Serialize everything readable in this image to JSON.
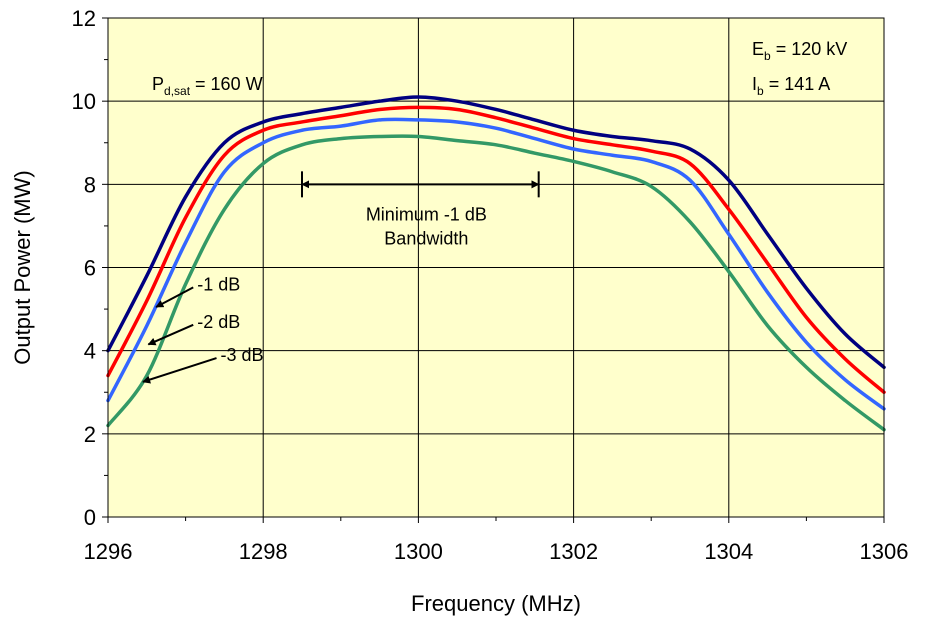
{
  "chart_data": {
    "type": "line",
    "xlabel": "Frequency (MHz)",
    "ylabel": "Output Power (MW)",
    "xlim": [
      1296,
      1306
    ],
    "ylim": [
      0,
      12
    ],
    "x_ticks": [
      "1296",
      "1298",
      "1300",
      "1302",
      "1304",
      "1306"
    ],
    "y_ticks": [
      "0",
      "2",
      "4",
      "6",
      "8",
      "10",
      "12"
    ],
    "grid": true,
    "background_color": "#FFFFCC",
    "series": [
      {
        "name": "",
        "color": "#000080",
        "x": [
          1296,
          1296.5,
          1297,
          1297.5,
          1298,
          1298.5,
          1299,
          1299.5,
          1300,
          1300.5,
          1301,
          1301.5,
          1302,
          1302.5,
          1303,
          1303.5,
          1304,
          1304.5,
          1305,
          1305.5,
          1306
        ],
        "y": [
          4.0,
          5.8,
          7.7,
          9.0,
          9.5,
          9.7,
          9.85,
          10.0,
          10.1,
          10.0,
          9.8,
          9.55,
          9.3,
          9.15,
          9.05,
          8.85,
          8.1,
          6.8,
          5.5,
          4.4,
          3.6
        ]
      },
      {
        "name": "-1 dB",
        "color": "#FF0000",
        "x": [
          1296,
          1296.5,
          1297,
          1297.5,
          1298,
          1298.5,
          1299,
          1299.5,
          1300,
          1300.5,
          1301,
          1301.5,
          1302,
          1302.5,
          1303,
          1303.5,
          1304,
          1304.5,
          1305,
          1305.5,
          1306
        ],
        "y": [
          3.4,
          5.2,
          7.2,
          8.7,
          9.3,
          9.5,
          9.65,
          9.8,
          9.85,
          9.8,
          9.6,
          9.35,
          9.1,
          8.95,
          8.8,
          8.5,
          7.4,
          6.1,
          4.8,
          3.8,
          3.0
        ]
      },
      {
        "name": "-2 dB",
        "color": "#3366FF",
        "x": [
          1296,
          1296.5,
          1297,
          1297.5,
          1298,
          1298.5,
          1299,
          1299.5,
          1300,
          1300.5,
          1301,
          1301.5,
          1302,
          1302.5,
          1303,
          1303.5,
          1304,
          1304.5,
          1305,
          1305.5,
          1306
        ],
        "y": [
          2.8,
          4.6,
          6.6,
          8.3,
          9.0,
          9.3,
          9.4,
          9.55,
          9.55,
          9.5,
          9.35,
          9.1,
          8.85,
          8.7,
          8.55,
          8.1,
          6.8,
          5.4,
          4.2,
          3.3,
          2.6
        ]
      },
      {
        "name": "-3 dB",
        "color": "#339966",
        "x": [
          1296,
          1296.5,
          1297,
          1297.5,
          1298,
          1298.5,
          1299,
          1299.5,
          1300,
          1300.5,
          1301,
          1301.5,
          1302,
          1302.5,
          1303,
          1303.5,
          1304,
          1304.5,
          1305,
          1305.5,
          1306
        ],
        "y": [
          2.2,
          3.4,
          5.6,
          7.4,
          8.5,
          8.95,
          9.1,
          9.15,
          9.15,
          9.05,
          8.95,
          8.75,
          8.55,
          8.3,
          7.95,
          7.1,
          5.9,
          4.6,
          3.6,
          2.8,
          2.1
        ]
      }
    ],
    "annotations": {
      "pd_sat": {
        "prefix": "P",
        "sub": "d,sat",
        "suffix": " = 160 W"
      },
      "eb": {
        "prefix": "E",
        "sub": "b",
        "suffix": " = 120 kV"
      },
      "ib": {
        "prefix": "I",
        "sub": "b",
        "suffix": " = 141 A"
      },
      "bandwidth": {
        "line1": "Minimum -1 dB",
        "line2": "Bandwidth",
        "x_start": 1298.5,
        "x_end": 1301.55,
        "y": 8.0
      },
      "curve_labels": [
        {
          "text": "-1 dB",
          "label_x": 1297.15,
          "label_y": 5.45,
          "arrow_x": 1296.62,
          "arrow_y": 5.05
        },
        {
          "text": "-2 dB",
          "label_x": 1297.15,
          "label_y": 4.55,
          "arrow_x": 1296.52,
          "arrow_y": 4.15
        },
        {
          "text": "-3 dB",
          "label_x": 1297.45,
          "label_y": 3.75,
          "arrow_x": 1296.45,
          "arrow_y": 3.25
        }
      ]
    }
  }
}
